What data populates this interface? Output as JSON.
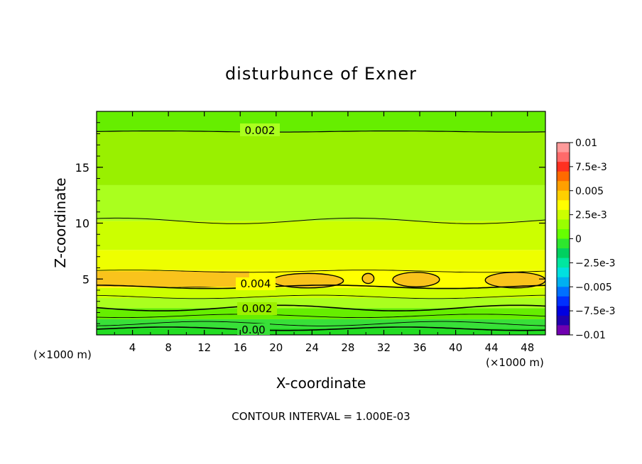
{
  "chart_data": {
    "type": "heatmap",
    "title": "disturbunce of Exner",
    "xlabel": "X-coordinate",
    "ylabel": "Z-coordinate",
    "x_unit_left": "(×1000 m)",
    "x_unit_right": "(×1000 m)",
    "xlim": [
      0,
      50
    ],
    "ylim": [
      0,
      20
    ],
    "x_ticks": [
      "4",
      "8",
      "12",
      "16",
      "20",
      "24",
      "28",
      "32",
      "36",
      "40",
      "44",
      "48"
    ],
    "y_ticks": [
      "5",
      "10",
      "15"
    ],
    "footer": "CONTOUR INTERVAL = 1.000E-03",
    "contour_labels": [
      "0.002",
      "0.004",
      "0.002",
      "0.00"
    ],
    "contour_interval": 0.001,
    "colorbar": {
      "ticks": [
        "0.01",
        "7.5e-3",
        "0.005",
        "2.5e-3",
        "0",
        "−2.5e-3",
        "−0.005",
        "−7.5e-3",
        "−0.01"
      ],
      "colors": [
        "#ff9a9a",
        "#ff6a6a",
        "#ff3020",
        "#ff6a00",
        "#ffa000",
        "#ffd000",
        "#ffff00",
        "#ccff00",
        "#99ff00",
        "#66ff00",
        "#2ee62e",
        "#00d060",
        "#00e6a0",
        "#00e0e0",
        "#00b0f0",
        "#0070ff",
        "#0030ff",
        "#0000e0",
        "#2000b0",
        "#7000b0"
      ]
    },
    "field": {
      "description_levels": [
        {
          "z_from": 0.0,
          "z_to": 0.6,
          "value": 0.0005
        },
        {
          "z_from": 0.6,
          "z_to": 1.4,
          "value": 0.001
        },
        {
          "z_from": 1.4,
          "z_to": 2.4,
          "value": 0.0015
        },
        {
          "z_from": 2.4,
          "z_to": 3.3,
          "value": 0.0025
        },
        {
          "z_from": 3.3,
          "z_to": 4.2,
          "value": 0.003
        },
        {
          "z_from": 4.2,
          "z_to": 5.8,
          "value": 0.0038
        },
        {
          "z_from": 5.8,
          "z_to": 7.6,
          "value": 0.0035
        },
        {
          "z_from": 7.6,
          "z_to": 10.2,
          "value": 0.003
        },
        {
          "z_from": 10.2,
          "z_to": 13.4,
          "value": 0.0025
        },
        {
          "z_from": 13.4,
          "z_to": 18.2,
          "value": 0.002
        },
        {
          "z_from": 18.2,
          "z_to": 20.0,
          "value": 0.0015
        }
      ]
    }
  }
}
